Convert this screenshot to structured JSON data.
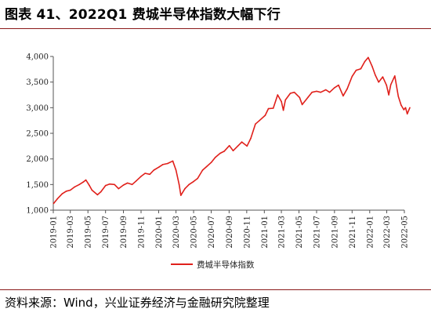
{
  "header": {
    "title": "图表 41、2022Q1 费城半导体指数大幅下行"
  },
  "footer": {
    "source": "资料来源：Wind，兴业证券经济与金融研究院整理"
  },
  "chart_data": {
    "type": "line",
    "ylim": [
      1000,
      4000
    ],
    "y_ticks": [
      1000,
      1500,
      2000,
      2500,
      3000,
      3500,
      4000
    ],
    "y_tick_labels": [
      "1,000",
      "1,500",
      "2,000",
      "2,500",
      "3,000",
      "3,500",
      "4,000"
    ],
    "x_tick_labels": [
      "2019-01",
      "2019-03",
      "2019-05",
      "2019-07",
      "2019-09",
      "2019-11",
      "2020-01",
      "2020-03",
      "2020-05",
      "2020-07",
      "2020-09",
      "2020-11",
      "2021-01",
      "2021-03",
      "2021-05",
      "2021-07",
      "2021-09",
      "2021-11",
      "2022-01",
      "2022-03",
      "2022-05"
    ],
    "grid": false,
    "legend": "bottom",
    "colors": {
      "series": "#e0201b"
    },
    "series": [
      {
        "name": "费城半导体指数",
        "x": [
          "2019-01-02",
          "2019-01-15",
          "2019-02-01",
          "2019-02-15",
          "2019-03-01",
          "2019-03-15",
          "2019-04-01",
          "2019-04-15",
          "2019-04-24",
          "2019-05-06",
          "2019-05-15",
          "2019-06-03",
          "2019-06-15",
          "2019-07-01",
          "2019-07-15",
          "2019-08-01",
          "2019-08-15",
          "2019-09-01",
          "2019-09-15",
          "2019-10-01",
          "2019-10-15",
          "2019-11-01",
          "2019-11-15",
          "2019-12-01",
          "2019-12-15",
          "2020-01-02",
          "2020-01-15",
          "2020-02-01",
          "2020-02-19",
          "2020-03-01",
          "2020-03-12",
          "2020-03-18",
          "2020-04-01",
          "2020-04-15",
          "2020-05-01",
          "2020-05-15",
          "2020-06-01",
          "2020-06-15",
          "2020-07-01",
          "2020-07-15",
          "2020-08-01",
          "2020-08-15",
          "2020-09-02",
          "2020-09-15",
          "2020-10-01",
          "2020-10-15",
          "2020-11-02",
          "2020-11-15",
          "2020-12-01",
          "2020-12-15",
          "2021-01-04",
          "2021-01-15",
          "2021-02-01",
          "2021-02-16",
          "2021-03-01",
          "2021-03-08",
          "2021-03-15",
          "2021-04-01",
          "2021-04-15",
          "2021-05-03",
          "2021-05-12",
          "2021-06-01",
          "2021-06-15",
          "2021-07-01",
          "2021-07-15",
          "2021-08-02",
          "2021-08-15",
          "2021-09-01",
          "2021-09-15",
          "2021-10-01",
          "2021-10-15",
          "2021-11-01",
          "2021-11-15",
          "2021-12-01",
          "2021-12-15",
          "2021-12-27",
          "2022-01-10",
          "2022-01-20",
          "2022-02-01",
          "2022-02-15",
          "2022-02-28",
          "2022-03-08",
          "2022-03-15",
          "2022-03-29",
          "2022-04-10",
          "2022-04-20",
          "2022-04-29",
          "2022-05-05",
          "2022-05-11",
          "2022-05-20"
        ],
        "values": [
          1130,
          1220,
          1320,
          1370,
          1390,
          1450,
          1500,
          1550,
          1590,
          1480,
          1390,
          1300,
          1360,
          1480,
          1510,
          1500,
          1420,
          1490,
          1530,
          1500,
          1570,
          1660,
          1720,
          1700,
          1780,
          1840,
          1890,
          1910,
          1960,
          1780,
          1500,
          1290,
          1420,
          1500,
          1560,
          1620,
          1780,
          1850,
          1930,
          2030,
          2110,
          2150,
          2260,
          2160,
          2250,
          2330,
          2250,
          2400,
          2680,
          2750,
          2850,
          2980,
          2990,
          3250,
          3120,
          2950,
          3150,
          3280,
          3300,
          3200,
          3060,
          3200,
          3300,
          3320,
          3300,
          3350,
          3300,
          3390,
          3440,
          3230,
          3370,
          3610,
          3730,
          3760,
          3900,
          3980,
          3800,
          3640,
          3500,
          3600,
          3440,
          3250,
          3450,
          3620,
          3220,
          3050,
          2960,
          3000,
          2880,
          3000
        ]
      }
    ]
  }
}
